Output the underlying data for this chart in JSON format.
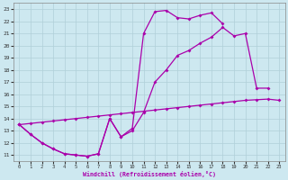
{
  "bg_color": "#cde8f0",
  "grid_color": "#b0cfd8",
  "line_color": "#aa00aa",
  "xlim": [
    -0.5,
    23.5
  ],
  "ylim": [
    10.5,
    23.5
  ],
  "xticks": [
    0,
    1,
    2,
    3,
    4,
    5,
    6,
    7,
    8,
    9,
    10,
    11,
    12,
    13,
    14,
    15,
    16,
    17,
    18,
    19,
    20,
    21,
    22,
    23
  ],
  "yticks": [
    11,
    12,
    13,
    14,
    15,
    16,
    17,
    18,
    19,
    20,
    21,
    22,
    23
  ],
  "xlabel": "Windchill (Refroidissement éolien,°C)",
  "curve_straight_x": [
    0,
    1,
    2,
    3,
    4,
    5,
    6,
    7,
    8,
    9,
    10,
    11,
    12,
    13,
    14,
    15,
    16,
    17,
    18,
    19,
    20,
    21,
    22,
    23
  ],
  "curve_straight_y": [
    13.5,
    13.6,
    13.7,
    13.8,
    13.9,
    14.0,
    14.1,
    14.2,
    14.3,
    14.4,
    14.5,
    14.6,
    14.7,
    14.8,
    14.9,
    15.0,
    15.1,
    15.2,
    15.3,
    15.4,
    15.5,
    15.55,
    15.6,
    15.5
  ],
  "curve_mid_x": [
    0,
    1,
    2,
    3,
    4,
    5,
    6,
    7,
    8,
    9,
    10,
    11,
    12,
    13,
    14,
    15,
    16,
    17,
    18,
    19,
    20,
    21,
    22
  ],
  "curve_mid_y": [
    13.5,
    12.7,
    12.0,
    11.5,
    11.1,
    11.0,
    10.9,
    11.1,
    14.0,
    12.5,
    13.0,
    14.5,
    17.0,
    18.0,
    19.2,
    19.6,
    20.2,
    20.7,
    21.5,
    20.8,
    21.0,
    16.5,
    16.5
  ],
  "curve_top_x": [
    0,
    1,
    2,
    3,
    4,
    5,
    6,
    7,
    8,
    9,
    10,
    11,
    12,
    13,
    14,
    15,
    16,
    17,
    18
  ],
  "curve_top_y": [
    13.5,
    12.7,
    12.0,
    11.5,
    11.1,
    11.0,
    10.9,
    11.1,
    14.0,
    12.5,
    13.2,
    21.0,
    22.8,
    22.9,
    22.3,
    22.2,
    22.5,
    22.7,
    21.8
  ]
}
